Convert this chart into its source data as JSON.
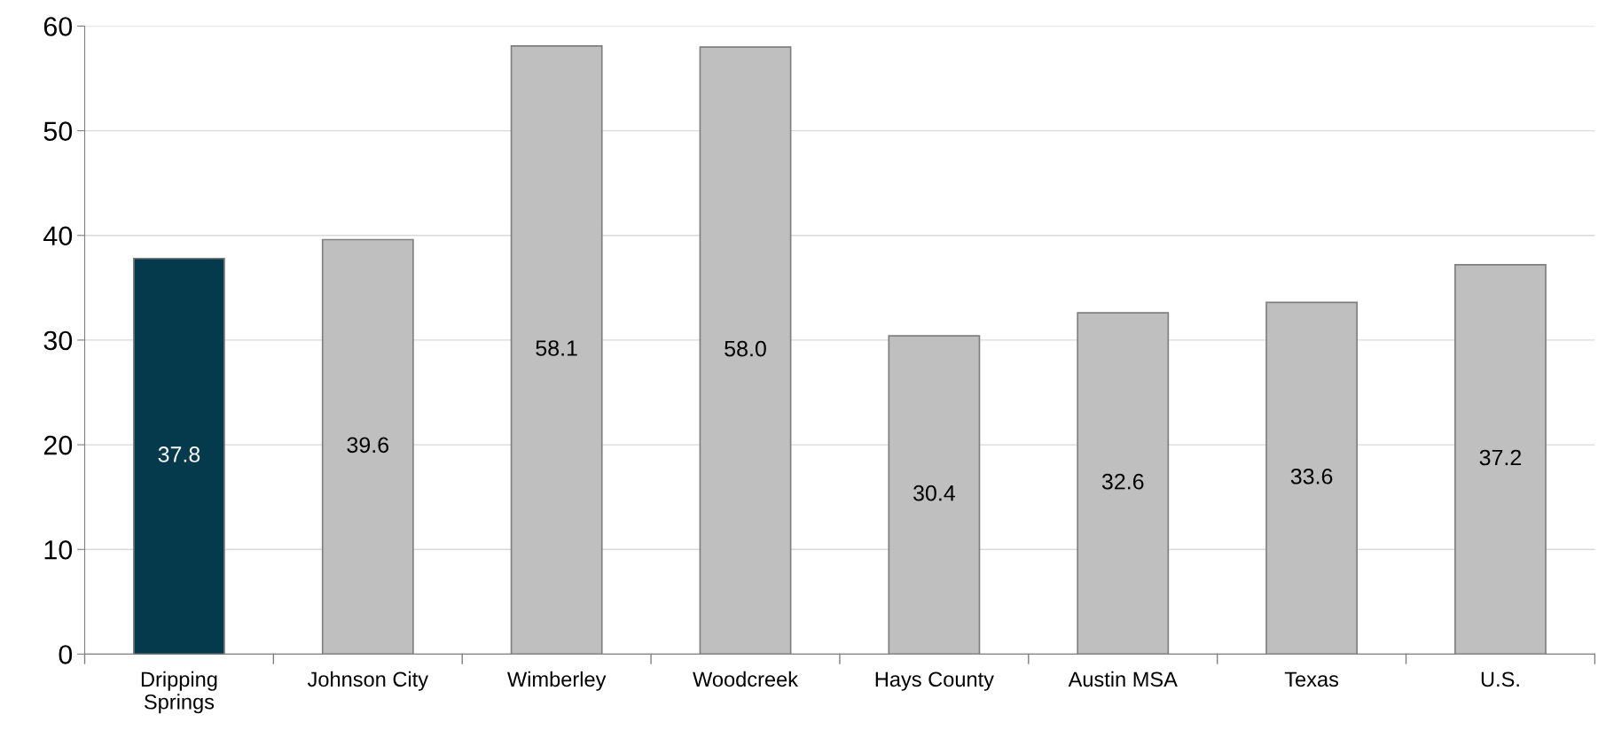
{
  "chart_data": {
    "type": "bar",
    "categories": [
      "Dripping\nSprings",
      "Johnson City",
      "Wimberley",
      "Woodcreek",
      "Hays County",
      "Austin MSA",
      "Texas",
      "U.S."
    ],
    "values": [
      37.8,
      39.6,
      58.1,
      58.0,
      30.4,
      32.6,
      33.6,
      37.2
    ],
    "value_labels": [
      "37.8",
      "39.6",
      "58.1",
      "58.0",
      "30.4",
      "32.6",
      "33.6",
      "37.2"
    ],
    "colors": [
      "#053a4c",
      "#bfbfbf",
      "#bfbfbf",
      "#bfbfbf",
      "#bfbfbf",
      "#bfbfbf",
      "#bfbfbf",
      "#bfbfbf"
    ],
    "ylim": [
      0,
      60
    ],
    "yticks": [
      0,
      10,
      20,
      30,
      40,
      50,
      60
    ],
    "grid": "y",
    "legend": false
  }
}
